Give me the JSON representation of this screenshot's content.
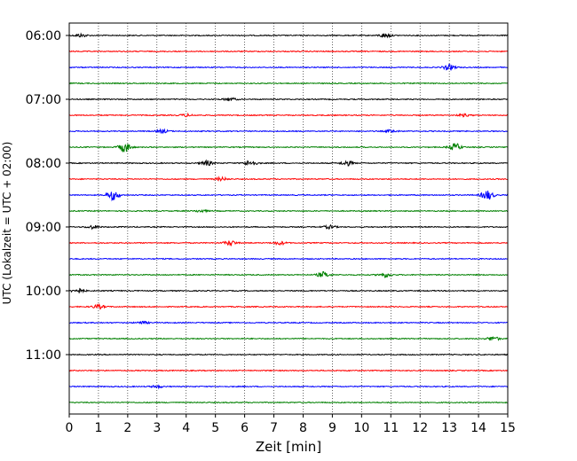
{
  "chart_data": {
    "type": "line",
    "title": "",
    "xlabel": "Zeit  [min]",
    "ylabel": "UTC (Lokalzeit = UTC + 02:00)",
    "xlim": [
      0,
      15
    ],
    "x_ticks": [
      "0",
      "1",
      "2",
      "3",
      "4",
      "5",
      "6",
      "7",
      "8",
      "9",
      "10",
      "11",
      "12",
      "13",
      "14",
      "15"
    ],
    "y_ticks": [
      "06:00",
      "07:00",
      "08:00",
      "09:00",
      "10:00",
      "11:00"
    ],
    "grid": "vertical dotted at each minute",
    "trace_interval_minutes": 15,
    "start_time": "06:00",
    "end_time": "11:45",
    "colors": [
      "#000000",
      "#ff0000",
      "#0000ff",
      "#008000"
    ],
    "series": [
      {
        "time": "06:00",
        "color": "#000000",
        "events": [
          {
            "x": 0.4,
            "amp": 0.2
          },
          {
            "x": 10.8,
            "amp": 0.25
          }
        ]
      },
      {
        "time": "06:15",
        "color": "#ff0000",
        "events": []
      },
      {
        "time": "06:30",
        "color": "#0000ff",
        "events": [
          {
            "x": 13.0,
            "amp": 0.35
          }
        ]
      },
      {
        "time": "06:45",
        "color": "#008000",
        "events": []
      },
      {
        "time": "07:00",
        "color": "#000000",
        "events": [
          {
            "x": 5.5,
            "amp": 0.2
          }
        ]
      },
      {
        "time": "07:15",
        "color": "#ff0000",
        "events": [
          {
            "x": 4.0,
            "amp": 0.15
          },
          {
            "x": 13.5,
            "amp": 0.15
          }
        ]
      },
      {
        "time": "07:30",
        "color": "#0000ff",
        "events": [
          {
            "x": 3.2,
            "amp": 0.2
          },
          {
            "x": 11.0,
            "amp": 0.15
          }
        ]
      },
      {
        "time": "07:45",
        "color": "#008000",
        "events": [
          {
            "x": 1.9,
            "amp": 0.6
          },
          {
            "x": 13.2,
            "amp": 0.45
          }
        ]
      },
      {
        "time": "08:00",
        "color": "#000000",
        "events": [
          {
            "x": 4.7,
            "amp": 0.3
          },
          {
            "x": 6.2,
            "amp": 0.35
          },
          {
            "x": 9.5,
            "amp": 0.3
          }
        ]
      },
      {
        "time": "08:15",
        "color": "#ff0000",
        "events": [
          {
            "x": 5.2,
            "amp": 0.2
          }
        ]
      },
      {
        "time": "08:30",
        "color": "#0000ff",
        "events": [
          {
            "x": 1.5,
            "amp": 0.6
          },
          {
            "x": 14.3,
            "amp": 0.6
          }
        ]
      },
      {
        "time": "08:45",
        "color": "#008000",
        "events": [
          {
            "x": 4.5,
            "amp": 0.15
          }
        ]
      },
      {
        "time": "09:00",
        "color": "#000000",
        "events": [
          {
            "x": 0.8,
            "amp": 0.2
          },
          {
            "x": 8.9,
            "amp": 0.2
          }
        ]
      },
      {
        "time": "09:15",
        "color": "#ff0000",
        "events": [
          {
            "x": 5.5,
            "amp": 0.3
          },
          {
            "x": 7.2,
            "amp": 0.2
          }
        ]
      },
      {
        "time": "09:30",
        "color": "#0000ff",
        "events": []
      },
      {
        "time": "09:45",
        "color": "#008000",
        "events": [
          {
            "x": 8.7,
            "amp": 0.35
          },
          {
            "x": 10.8,
            "amp": 0.3
          }
        ]
      },
      {
        "time": "10:00",
        "color": "#000000",
        "events": [
          {
            "x": 0.3,
            "amp": 0.3
          }
        ]
      },
      {
        "time": "10:15",
        "color": "#ff0000",
        "events": [
          {
            "x": 1.0,
            "amp": 0.25
          }
        ]
      },
      {
        "time": "10:30",
        "color": "#0000ff",
        "events": [
          {
            "x": 2.5,
            "amp": 0.15
          }
        ]
      },
      {
        "time": "10:45",
        "color": "#008000",
        "events": [
          {
            "x": 14.5,
            "amp": 0.25
          }
        ]
      },
      {
        "time": "11:00",
        "color": "#000000",
        "events": []
      },
      {
        "time": "11:15",
        "color": "#ff0000",
        "events": []
      },
      {
        "time": "11:30",
        "color": "#0000ff",
        "events": [
          {
            "x": 3.0,
            "amp": 0.15
          }
        ]
      },
      {
        "time": "11:45",
        "color": "#008000",
        "events": []
      }
    ]
  }
}
